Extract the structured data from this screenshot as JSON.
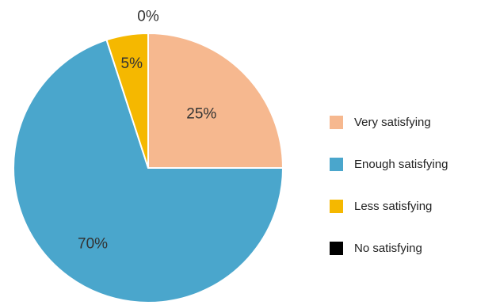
{
  "chart_data": {
    "type": "pie",
    "categories": [
      "Very satisfying",
      "Enough  satisfying",
      "Less  satisfying",
      "No  satisfying"
    ],
    "values": [
      25,
      70,
      5,
      0
    ],
    "data_labels": [
      "25%",
      "70%",
      "5%",
      "0%"
    ],
    "colors": [
      "#f6b88f",
      "#4aa6cc",
      "#f5b800",
      "#000000"
    ],
    "legend_position": "right",
    "title": "",
    "start_angle": "12 o'clock",
    "direction": "clockwise"
  }
}
